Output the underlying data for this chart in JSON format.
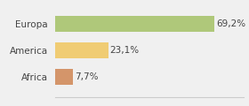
{
  "categories": [
    "Africa",
    "America",
    "Europa"
  ],
  "values": [
    7.7,
    23.1,
    69.2
  ],
  "labels": [
    "7,7%",
    "23,1%",
    "69,2%"
  ],
  "bar_colors": [
    "#d4956a",
    "#f0cc74",
    "#afc87a"
  ],
  "background_color": "#f0f0f0",
  "xlim": [
    0,
    82
  ],
  "bar_height": 0.62,
  "label_fontsize": 7.5,
  "tick_fontsize": 7.5,
  "text_color": "#444444"
}
